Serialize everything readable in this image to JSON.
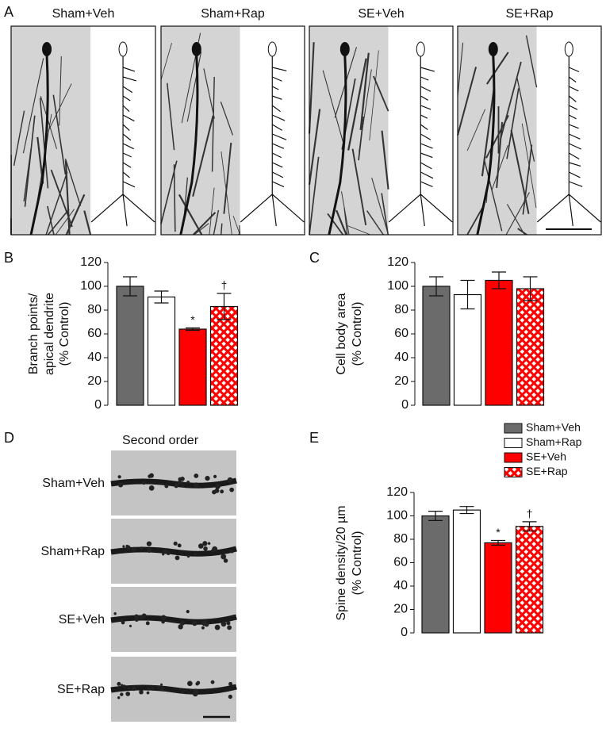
{
  "panel_labels": [
    "A",
    "B",
    "C",
    "D",
    "E"
  ],
  "panel_a": {
    "labels": [
      "Sham+Veh",
      "Sham+Rap",
      "SE+Veh",
      "SE+Rap"
    ]
  },
  "panel_d": {
    "title": "Second order",
    "labels": [
      "Sham+Veh",
      "Sham+Rap",
      "SE+Veh",
      "SE+Rap"
    ]
  },
  "chart_data": [
    {
      "type": "bar",
      "ylabel": [
        "Branch points/",
        "apical dendrite",
        "(% Control)"
      ],
      "categories": [
        null,
        null,
        null,
        null
      ],
      "values": [
        100,
        91,
        64,
        83
      ],
      "errors": [
        8,
        5,
        1,
        11
      ],
      "colors": [
        "#6b6b6b",
        "#ffffff",
        "#ff0000",
        "#ff0000"
      ],
      "hatched": [
        false,
        false,
        false,
        true
      ],
      "annotations": [
        null,
        null,
        "*",
        "†"
      ],
      "ylim": [
        0,
        120
      ],
      "yticks": [
        0,
        20,
        40,
        60,
        80,
        100,
        120
      ]
    },
    {
      "type": "bar",
      "ylabel": [
        "Cell body area",
        "(% Control)"
      ],
      "categories": [
        null,
        null,
        null,
        null
      ],
      "values": [
        100,
        93,
        105,
        98
      ],
      "errors": [
        8,
        12,
        7,
        10
      ],
      "colors": [
        "#6b6b6b",
        "#ffffff",
        "#ff0000",
        "#ff0000"
      ],
      "hatched": [
        false,
        false,
        false,
        true
      ],
      "ylim": [
        0,
        120
      ],
      "yticks": [
        0,
        20,
        40,
        60,
        80,
        100,
        120
      ]
    },
    {
      "type": "bar",
      "ylabel": [
        "Spine density/20 µm",
        "(% Control)"
      ],
      "categories": [
        null,
        null,
        null,
        null
      ],
      "values": [
        100,
        105,
        77,
        91
      ],
      "errors": [
        4,
        3,
        2,
        4
      ],
      "colors": [
        "#6b6b6b",
        "#ffffff",
        "#ff0000",
        "#ff0000"
      ],
      "hatched": [
        false,
        false,
        false,
        true
      ],
      "annotations": [
        null,
        null,
        "*",
        "†"
      ],
      "legend": [
        "Sham+Veh",
        "Sham+Rap",
        "SE+Veh",
        "SE+Rap"
      ],
      "ylim": [
        0,
        120
      ],
      "yticks": [
        0,
        20,
        40,
        60,
        80,
        100,
        120
      ]
    }
  ]
}
